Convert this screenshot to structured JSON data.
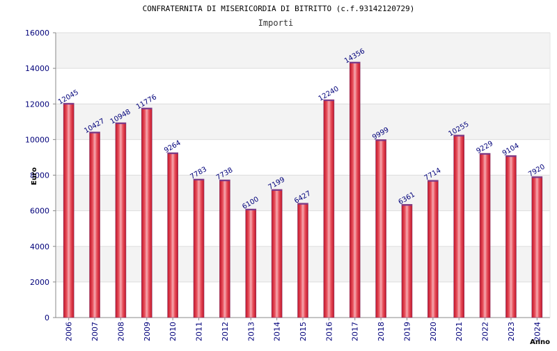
{
  "chart_data": {
    "type": "bar",
    "title": "CONFRATERNITA DI MISERICORDIA DI BITRITTO (c.f.93142120729)",
    "subtitle": "Importi",
    "xlabel": "Anno",
    "ylabel": "Euro",
    "ylim": [
      0,
      16000
    ],
    "yticks": [
      0,
      2000,
      4000,
      6000,
      8000,
      10000,
      12000,
      14000,
      16000
    ],
    "grid": true,
    "categories": [
      "2006",
      "2007",
      "2008",
      "2009",
      "2010",
      "2011",
      "2012",
      "2013",
      "2014",
      "2015",
      "2016",
      "2017",
      "2018",
      "2019",
      "2020",
      "2021",
      "2022",
      "2023",
      "2024"
    ],
    "values": [
      12045,
      10427,
      10948,
      11776,
      9264,
      7783,
      7738,
      6100,
      7199,
      6427,
      12240,
      14356,
      9999,
      6361,
      7714,
      10255,
      9229,
      9104,
      7920
    ],
    "data_labels": [
      "12045",
      "10427",
      "10948",
      "11776",
      "9264",
      "7783",
      "7738",
      "6100",
      "7199",
      "6427",
      "12240",
      "14356",
      "9999",
      "6361",
      "7714",
      "10255",
      "9229",
      "9104",
      "7920"
    ],
    "colors": {
      "bar_edge": "#c8102e",
      "bar_mid": "#f4a0a8",
      "bar_dark": "#d42030",
      "band": "#f3f3f3",
      "gridline": "#dddddd",
      "axis": "#888888",
      "tick_text": "#00007a"
    }
  }
}
